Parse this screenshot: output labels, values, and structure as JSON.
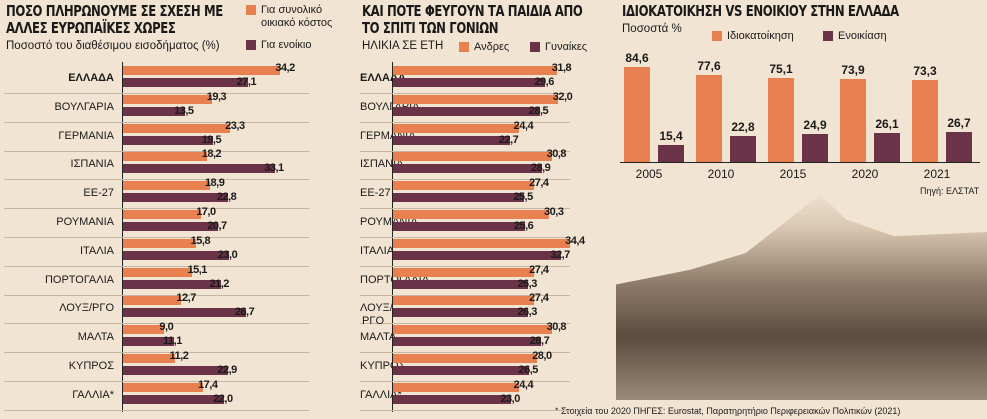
{
  "colors": {
    "orange": "#e8804f",
    "purple": "#6b3348"
  },
  "chart_data": [
    {
      "type": "bar",
      "orientation": "horizontal",
      "title": "ΠΟΣΟ ΠΛΗΡΩΝΟΥΜΕ ΣΕ ΣΧΕΣΗ ΜΕ ΑΛΛΕΣ ΕΥΡΩΠΑΪΚΕΣ ΧΩΡΕΣ",
      "subtitle": "Ποσοστό του διαθέσιμου εισοδήματος (%)",
      "categories": [
        "ΕΛΛΑΔΑ",
        "ΒΟΥΛΓΑΡΙΑ",
        "ΓΕΡΜΑΝΙΑ",
        "ΙΣΠΑΝΙΑ",
        "ΕΕ-27",
        "ΡΟΥΜΑΝΙΑ",
        "ΙΤΑΛΙΑ",
        "ΠΟΡΤΟΓΑΛΙΑ",
        "ΛΟΥΞ/ΡΓΟ",
        "ΜΑΛΤΑ",
        "ΚΥΠΡΟΣ",
        "ΓΑΛΛΙΑ*"
      ],
      "series": [
        {
          "name": "Για συνολικό οικιακό κόστος",
          "values": [
            34.2,
            19.3,
            23.3,
            18.2,
            18.9,
            17.0,
            15.8,
            15.1,
            12.7,
            9.0,
            11.2,
            17.4
          ]
        },
        {
          "name": "Για ενοίκιο",
          "values": [
            27.1,
            13.5,
            19.5,
            33.1,
            22.8,
            20.7,
            23.0,
            21.2,
            26.7,
            11.1,
            22.9,
            22.0
          ]
        }
      ],
      "labels": [
        "34,2",
        "27,1",
        "19,3",
        "13,5",
        "23,3",
        "19,5",
        "18,2",
        "33,1",
        "18,9",
        "22,8",
        "17,0",
        "20,7",
        "15,8",
        "23,0",
        "15,1",
        "21,2",
        "12,7",
        "26,7",
        "9,0",
        "11,1",
        "11,2",
        "22,9",
        "17,4",
        "22,0"
      ]
    },
    {
      "type": "bar",
      "orientation": "horizontal",
      "title": "ΚΑΙ ΠΟΤΕ ΦΕΥΓΟΥΝ ΤΑ ΠΑΙΔΙΑ ΑΠΟ ΤΟ ΣΠΙΤΙ ΤΩΝ ΓΟΝΙΩΝ",
      "subtitle": "ΗΛΙΚΙΑ ΣΕ ΕΤΗ",
      "categories": [
        "ΕΛΛΑΔΑ",
        "ΒΟΥΛΓΑΡΙΑ",
        "ΓΕΡΜΑΝΙΑ",
        "ΙΣΠΑΝΙΑ",
        "ΕΕ-27",
        "ΡΟΥΜΑΝΙΑ",
        "ΙΤΑΛΙΑ",
        "ΠΟΡΤΟΓΑΛΙΑ",
        "ΛΟΥΞ/ΡΓΟ",
        "ΜΑΛΤΑ",
        "ΚΥΠΡΟΣ",
        "ΓΑΛΛΙΑ*"
      ],
      "series": [
        {
          "name": "Ανδρες",
          "values": [
            31.8,
            32.0,
            24.4,
            30.8,
            27.4,
            30.3,
            34.4,
            27.4,
            27.4,
            30.8,
            28.0,
            24.4
          ]
        },
        {
          "name": "Γυναίκες",
          "values": [
            29.6,
            28.5,
            22.7,
            28.9,
            25.5,
            25.6,
            32.7,
            26.3,
            26.3,
            28.7,
            26.5,
            23.0
          ]
        }
      ],
      "labels": [
        "31,8",
        "29,6",
        "32,0",
        "28,5",
        "24,4",
        "22,7",
        "30,8",
        "28,9",
        "27,4",
        "25,5",
        "30,3",
        "25,6",
        "34,4",
        "32,7",
        "27,4",
        "26,3",
        "27,4",
        "26,3",
        "30,8",
        "28,7",
        "28,0",
        "26,5",
        "24,4",
        "23,0"
      ],
      "footnote": "* Στοιχεία του 2020 ΠΗΓΕΣ: Eurostat, Παρατηρητήριο Περιφερειακών Πολιτικών (2021)"
    },
    {
      "type": "bar",
      "orientation": "vertical",
      "title": "ΙΔΙΟΚΑΤΟΙΚΗΣΗ VS ΕΝΟΙΚΙΟΥ ΣΤΗΝ ΕΛΛΑΔΑ",
      "subtitle": "Ποσοστά %",
      "categories": [
        "2005",
        "2010",
        "2015",
        "2020",
        "2021"
      ],
      "series": [
        {
          "name": "Ιδιοκατοίκηση",
          "values": [
            84.6,
            77.6,
            75.1,
            73.9,
            73.3
          ]
        },
        {
          "name": "Ενοικίαση",
          "values": [
            15.4,
            22.8,
            24.9,
            26.1,
            26.7
          ]
        }
      ],
      "labels": [
        "84,6",
        "15,4",
        "77,6",
        "22,8",
        "75,1",
        "24,9",
        "73,9",
        "26,1",
        "73,3",
        "26,7"
      ],
      "source": "Πηγή: ΕΛΣΤΑΤ"
    }
  ]
}
